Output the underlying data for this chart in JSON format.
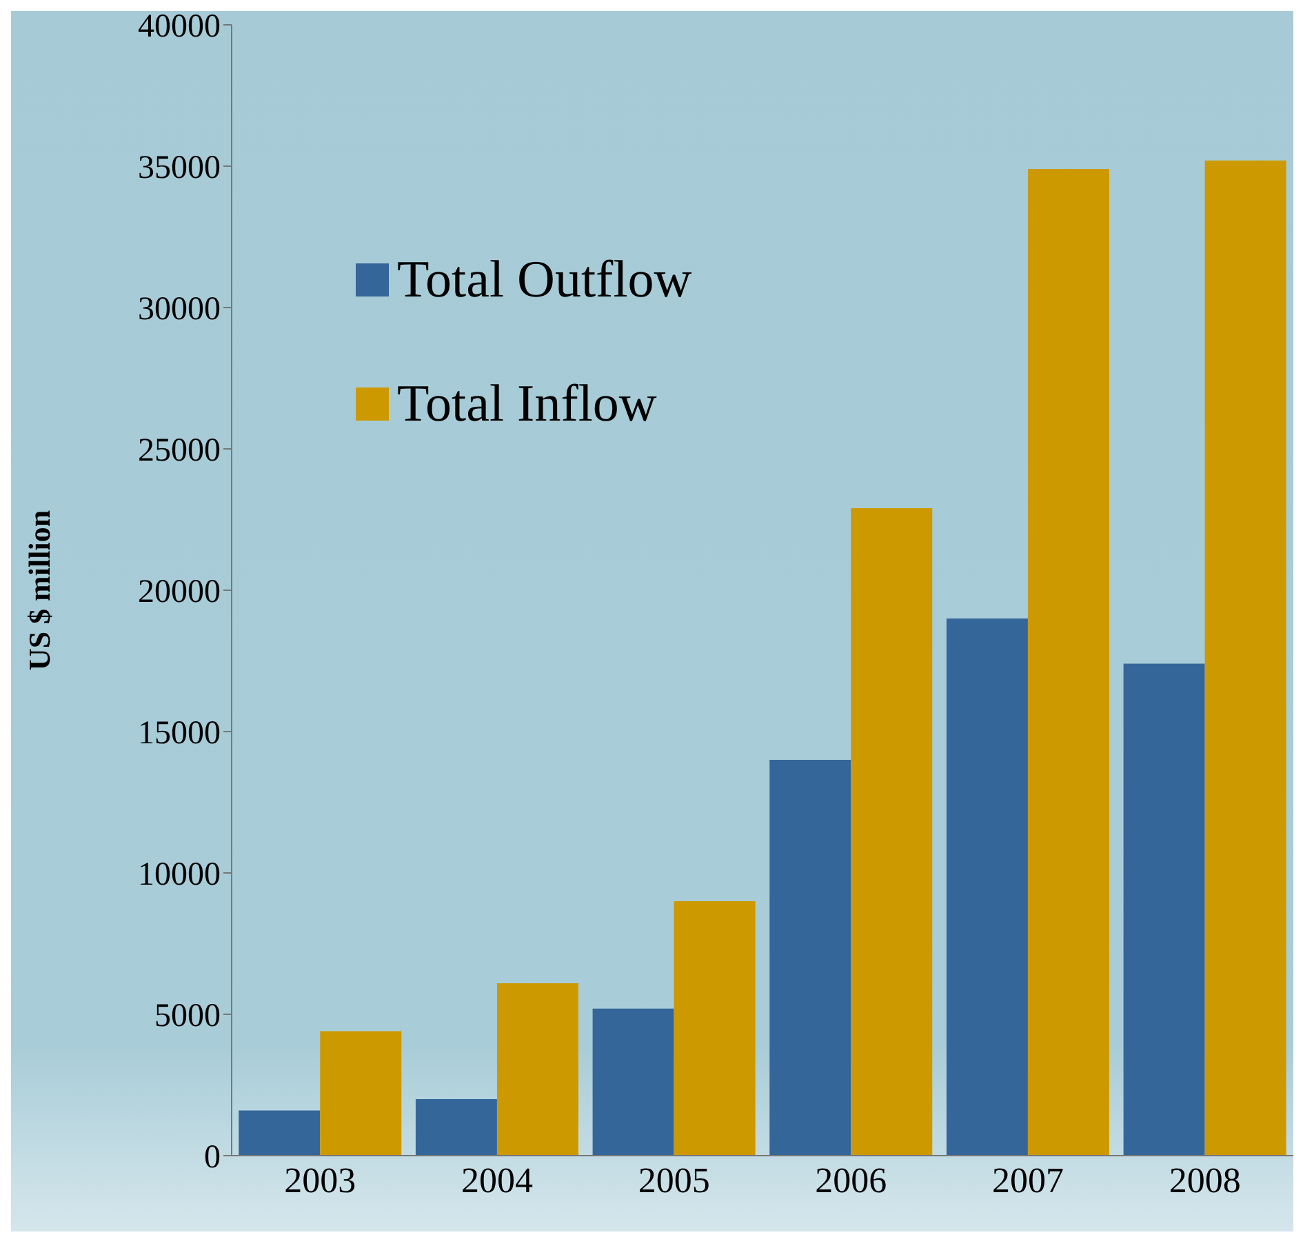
{
  "chart_data": {
    "type": "bar",
    "ylabel": "US $ million",
    "categories": [
      "2003",
      "2004",
      "2005",
      "2006",
      "2007",
      "2008"
    ],
    "series": [
      {
        "name": "Total Outflow",
        "color": "#346699",
        "values": [
          1600,
          2000,
          5200,
          14000,
          19000,
          17400
        ]
      },
      {
        "name": "Total Inflow",
        "color": "#cc9900",
        "values": [
          4400,
          6100,
          9000,
          22900,
          34900,
          35200
        ]
      }
    ],
    "ylim": [
      0,
      40000
    ],
    "yticks": [
      0,
      5000,
      10000,
      15000,
      20000,
      25000,
      30000,
      35000,
      40000
    ],
    "grid": false,
    "legend": "top left"
  }
}
